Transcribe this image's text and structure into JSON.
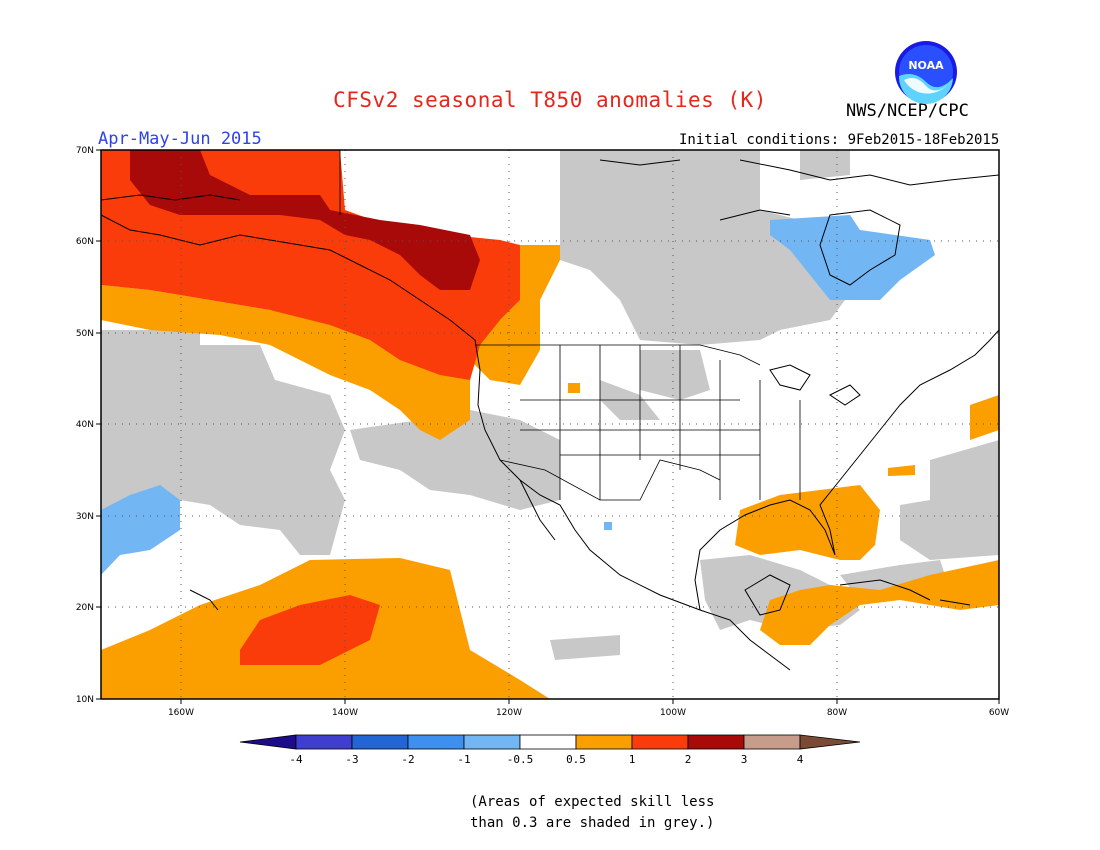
{
  "header": {
    "title": "CFSv2 seasonal T850 anomalies (K)",
    "agency": "NWS/NCEP/CPC",
    "season": "Apr-May-Jun 2015",
    "initial_conditions": "Initial conditions: 9Feb2015-18Feb2015",
    "logo_text": "NOAA"
  },
  "map": {
    "lat_labels": [
      "70N",
      "60N",
      "50N",
      "40N",
      "30N",
      "20N",
      "10N"
    ],
    "lon_labels": [
      "160W",
      "140W",
      "120W",
      "100W",
      "80W",
      "60W"
    ]
  },
  "legend": {
    "tick_labels": [
      "-4",
      "-3",
      "-2",
      "-1",
      "-0.5",
      "0.5",
      "1",
      "2",
      "3",
      "4"
    ],
    "colors": {
      "below_-4": "#1c0c8c",
      "-4_-3": "#3e3fcf",
      "-3_-2": "#2266d6",
      "-2_-1": "#3d8ff0",
      "-1_-0.5": "#73b6f4",
      "-0.5_0.5": "#ffffff",
      "0.5_1": "#fb9e00",
      "1_2": "#fa3c0a",
      "2_3": "#a80a0a",
      "3_4": "#c79c8a",
      "above_4": "#7a4a35"
    },
    "skill_mask_color": "#c8c8c8"
  },
  "footnote": {
    "line1": "(Areas of expected skill less",
    "line2": "than 0.3 are shaded in grey.)"
  }
}
